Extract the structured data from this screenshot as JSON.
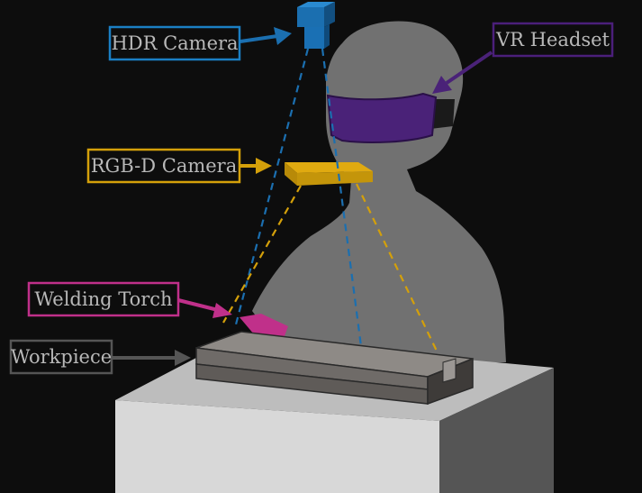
{
  "labels": {
    "hdr_camera": "HDR Camera",
    "vr_headset": "VR Headset",
    "rgbd_camera": "RGB-D Camera",
    "welding_torch": "Welding Torch",
    "workpiece": "Workpiece"
  },
  "colors": {
    "background": "#0d0d0d",
    "hdr": "#1b7fc4",
    "vr": "#4b1f7a",
    "rgbd": "#d4a00a",
    "torch": "#c0308a",
    "workpiece": "#6b6b6b",
    "person": "#727272",
    "table_top": "#bfbfbf"
  }
}
